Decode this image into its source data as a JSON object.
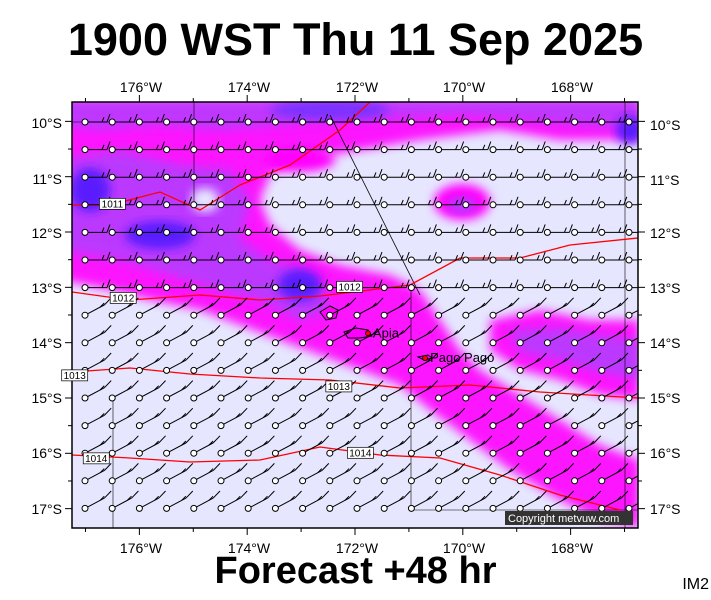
{
  "title": "1900 WST Thu 11 Sep 2025",
  "footer": "Forecast +48 hr",
  "image_code": "IM2",
  "copyright": "Copyright metvuw.com",
  "map": {
    "lon_labels": [
      "176°W",
      "174°W",
      "172°W",
      "170°W",
      "168°W"
    ],
    "lat_labels": [
      "10°S",
      "11°S",
      "12°S",
      "13°S",
      "14°S",
      "15°S",
      "16°S",
      "17°S"
    ],
    "places": [
      {
        "name": "Apia",
        "lon": -171.76,
        "lat": -13.83
      },
      {
        "name": "Pago Pago",
        "lon": -170.7,
        "lat": -14.28
      }
    ],
    "isobars": [
      {
        "label": "1011",
        "lon": -176.5,
        "lat": -11.5
      },
      {
        "label": "1012",
        "lon": -176.3,
        "lat": -13.2
      },
      {
        "label": "1012",
        "lon": -172.1,
        "lat": -13.0
      },
      {
        "label": "1013",
        "lon": -177.2,
        "lat": -14.6
      },
      {
        "label": "1013",
        "lon": -172.3,
        "lat": -14.8
      },
      {
        "label": "1014",
        "lon": -176.8,
        "lat": -16.1
      },
      {
        "label": "1014",
        "lon": -171.9,
        "lat": -16.0
      }
    ],
    "colors": {
      "background": "#e6e6ff",
      "rain_light": "#ff00ff",
      "rain_medium": "#b040ff",
      "rain_heavy": "#5a1cff",
      "isobar": "#ff0000",
      "frame": "#000000"
    }
  }
}
